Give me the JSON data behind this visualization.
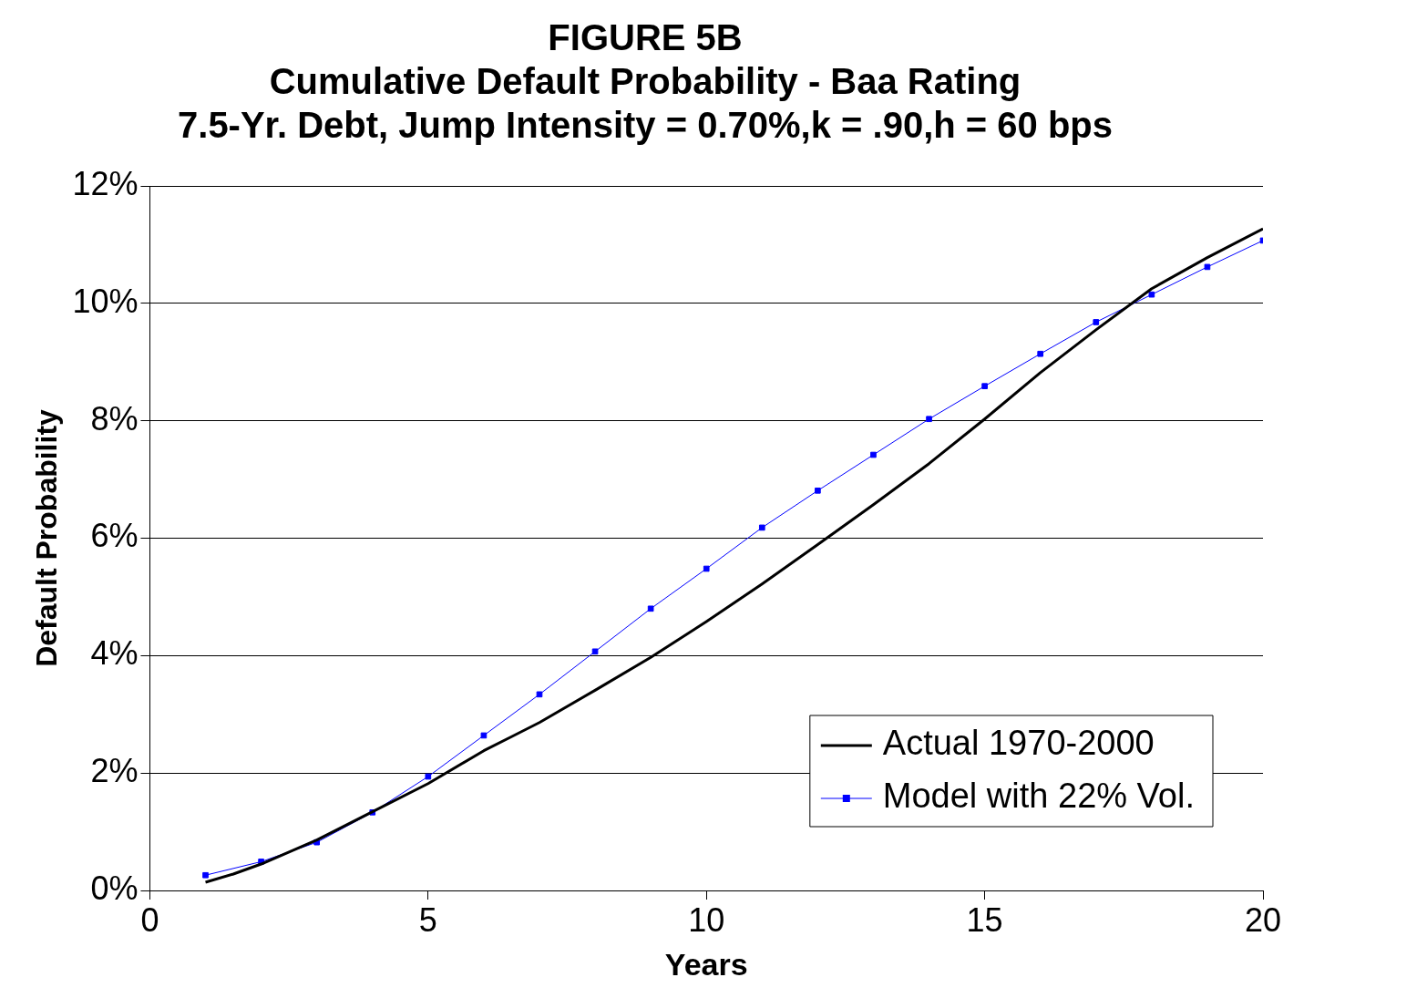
{
  "chart_data": {
    "type": "line",
    "title": [
      "FIGURE 5B",
      "Cumulative Default Probability - Baa Rating",
      "7.5-Yr. Debt, Jump Intensity = 0.70%,k = .90,h = 60 bps"
    ],
    "xlabel": "Years",
    "ylabel": "Default Probability",
    "xlim": [
      0,
      20
    ],
    "xticks": [
      0,
      5,
      10,
      15,
      20
    ],
    "ylim": [
      0,
      12
    ],
    "yticks": [
      {
        "value": 0,
        "label": "0%"
      },
      {
        "value": 2,
        "label": "2%"
      },
      {
        "value": 4,
        "label": "4%"
      },
      {
        "value": 6,
        "label": "6%"
      },
      {
        "value": 8,
        "label": "8%"
      },
      {
        "value": 10,
        "label": "10%"
      },
      {
        "value": 12,
        "label": "12%"
      }
    ],
    "grid": "y",
    "legend": "bottom right",
    "series": [
      {
        "name": "Actual 1970-2000",
        "color": "#000000",
        "marker": "none",
        "x": [
          1,
          1.5,
          2,
          3,
          4,
          5,
          6,
          6.5,
          7,
          8,
          9,
          10,
          11,
          12,
          13,
          14,
          15,
          16,
          17,
          18,
          19,
          20
        ],
        "values": [
          0.14,
          0.28,
          0.45,
          0.86,
          1.34,
          1.82,
          2.38,
          2.62,
          2.86,
          3.41,
          3.97,
          4.58,
          5.22,
          5.89,
          6.57,
          7.27,
          8.03,
          8.82,
          9.55,
          10.25,
          10.78,
          11.27
        ]
      },
      {
        "name": "Model with 22% Vol.",
        "color": "#0000ff",
        "marker": "square",
        "x": [
          1,
          2,
          3,
          4,
          5,
          6,
          7,
          8,
          9,
          10,
          11,
          12,
          13,
          14,
          15,
          16,
          17,
          18,
          19,
          20
        ],
        "values": [
          0.26,
          0.49,
          0.82,
          1.33,
          1.94,
          2.64,
          3.34,
          4.07,
          4.8,
          5.48,
          6.18,
          6.81,
          7.42,
          8.03,
          8.59,
          9.14,
          9.68,
          10.15,
          10.62,
          11.07
        ]
      }
    ]
  }
}
